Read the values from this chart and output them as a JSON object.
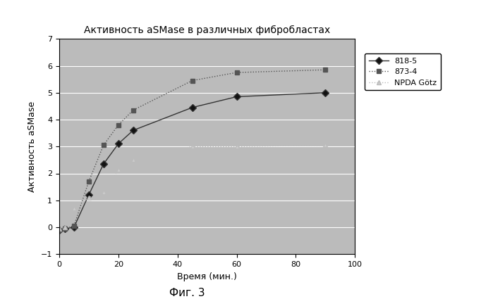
{
  "title": "Активность aSMase в различных фибробластах",
  "xlabel": "Время (мин.)",
  "ylabel": "Активность aSMase",
  "caption": "Фиг. 3",
  "xlim": [
    0,
    100
  ],
  "ylim": [
    -1,
    7
  ],
  "yticks": [
    -1,
    0,
    1,
    2,
    3,
    4,
    5,
    6,
    7
  ],
  "xticks": [
    0,
    20,
    40,
    60,
    80,
    100
  ],
  "series": [
    {
      "label": "818-5",
      "x": [
        0,
        2,
        5,
        10,
        15,
        20,
        25,
        45,
        60,
        90
      ],
      "y": [
        -0.1,
        -0.05,
        0.0,
        1.2,
        2.35,
        3.1,
        3.6,
        4.45,
        4.85,
        5.0
      ],
      "color": "#333333",
      "linestyle": "-",
      "marker": "D",
      "markersize": 5,
      "linewidth": 1.0,
      "markerfacecolor": "#111111"
    },
    {
      "label": "873-4",
      "x": [
        0,
        2,
        5,
        10,
        15,
        20,
        25,
        45,
        60,
        90
      ],
      "y": [
        -0.1,
        -0.05,
        0.05,
        1.7,
        3.05,
        3.8,
        4.35,
        5.45,
        5.75,
        5.85
      ],
      "color": "#555555",
      "linestyle": ":",
      "marker": "s",
      "markersize": 5,
      "linewidth": 1.0,
      "markerfacecolor": "#555555"
    },
    {
      "label": "NPDA Götz",
      "x": [
        0,
        2,
        5,
        10,
        15,
        20,
        25,
        45,
        60,
        90
      ],
      "y": [
        -0.05,
        0.0,
        0.7,
        1.1,
        1.3,
        2.15,
        2.5,
        3.0,
        3.0,
        3.05
      ],
      "color": "#bbbbbb",
      "linestyle": ":",
      "marker": "^",
      "markersize": 5,
      "linewidth": 1.0,
      "markerfacecolor": "#cccccc"
    }
  ],
  "figure_bg": "#ffffff",
  "plot_bg_color": "#bbbbbb",
  "grid_color": "#ffffff",
  "legend_fontsize": 8,
  "title_fontsize": 10,
  "axis_fontsize": 9,
  "caption_fontsize": 11
}
